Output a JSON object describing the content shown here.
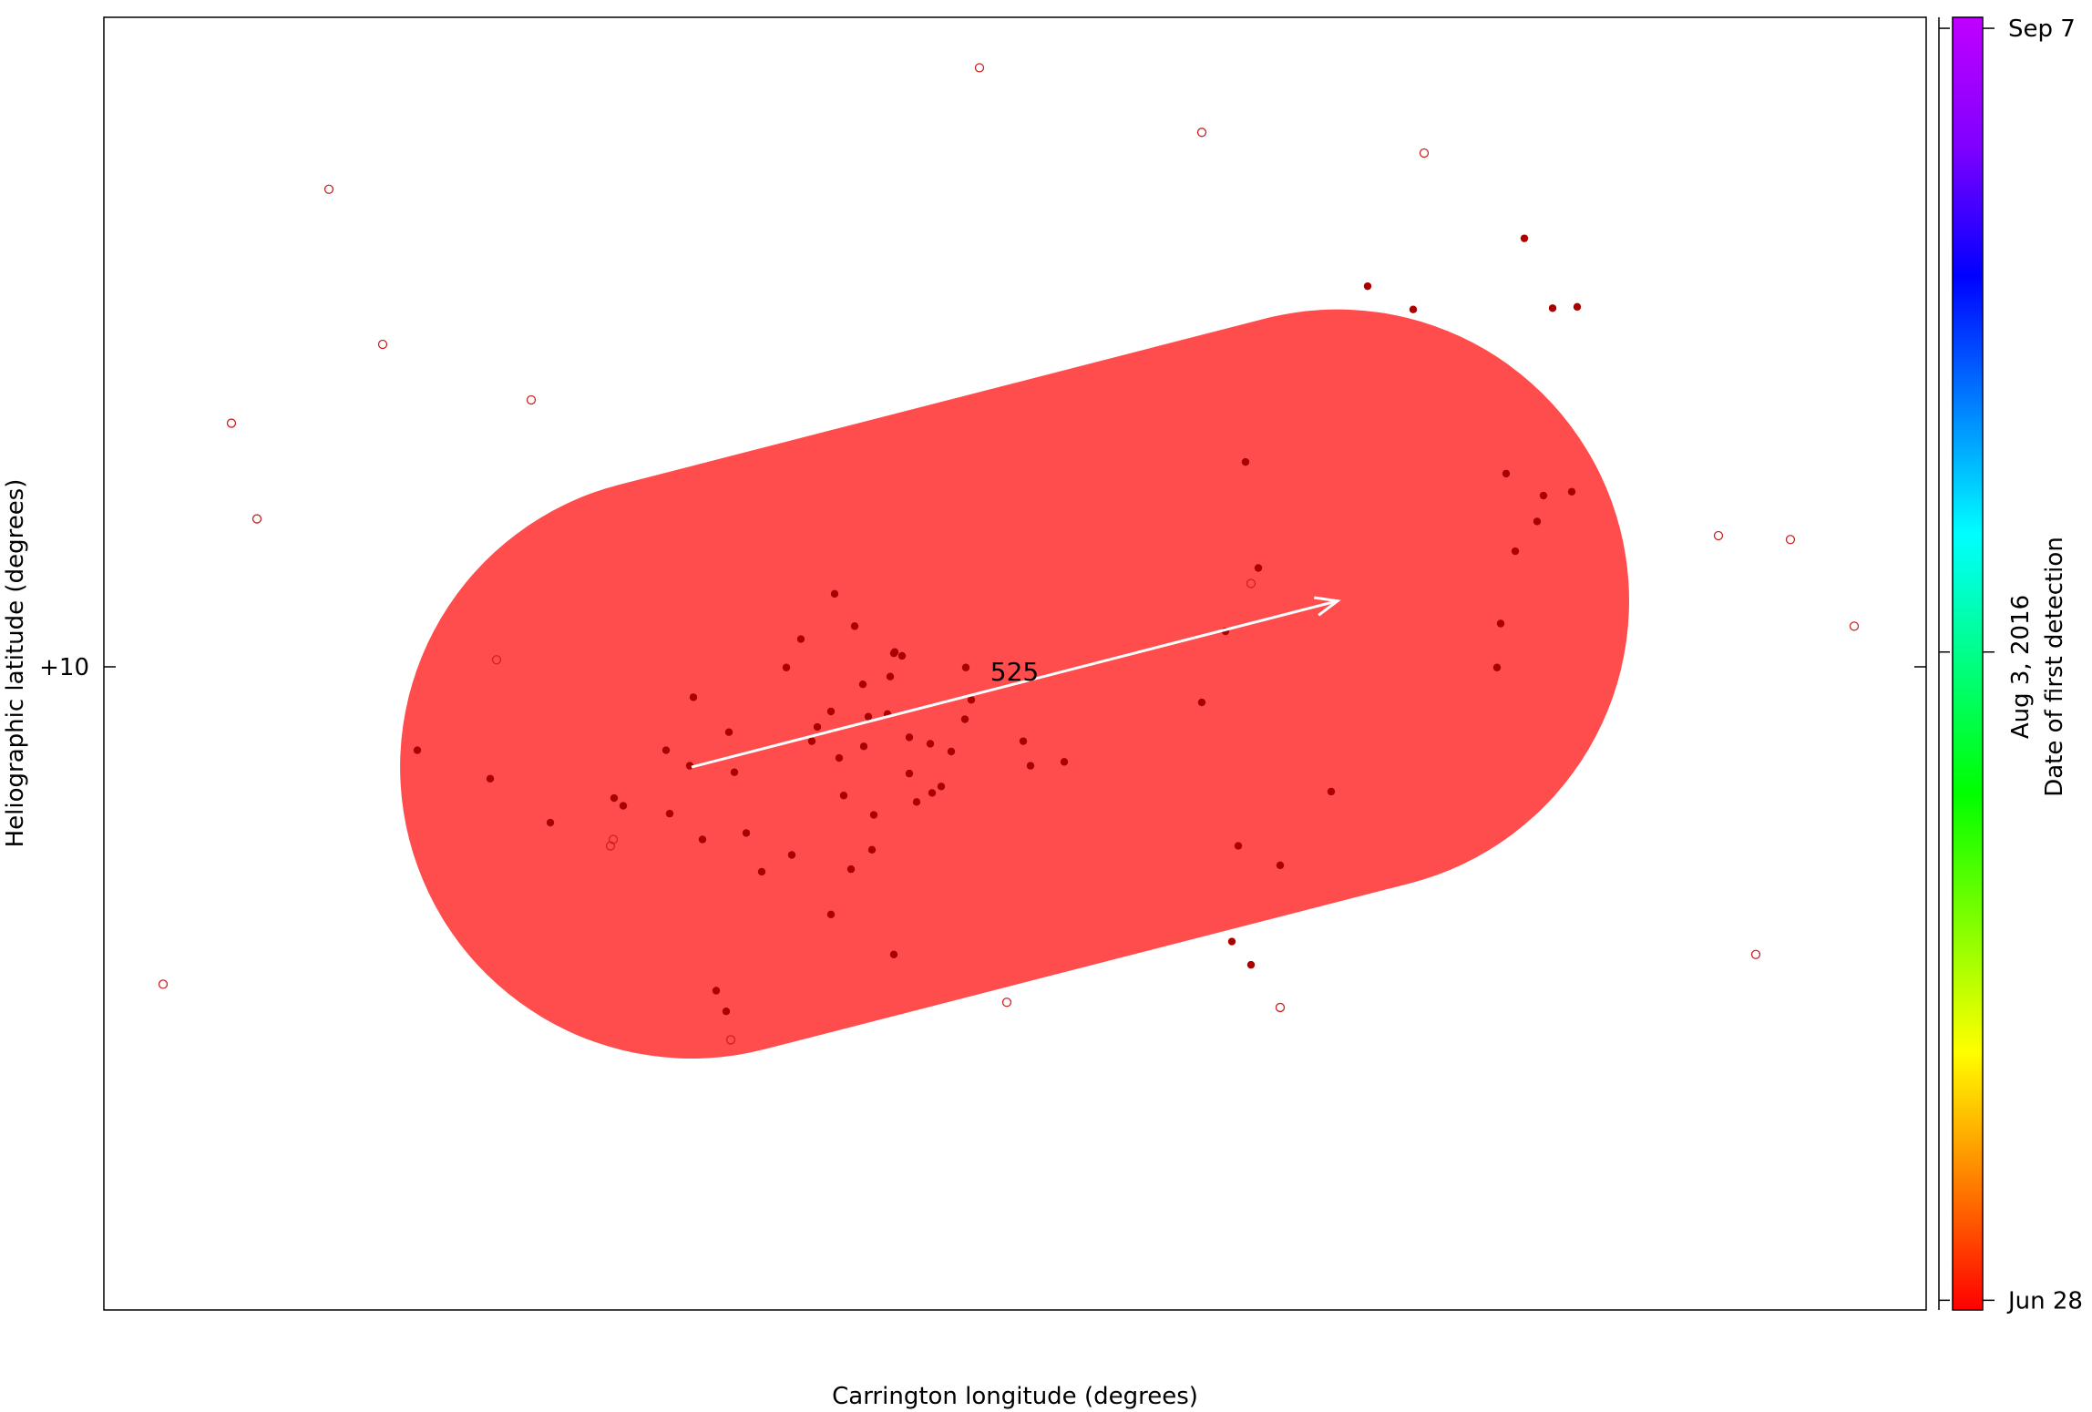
{
  "chart_data": {
    "type": "scatter",
    "title": "",
    "xlabel": "Carrington longitude (degrees)",
    "ylabel": "Heliographic latitude (degrees)",
    "y_ticks": [
      "+10"
    ],
    "grid": false,
    "colors": {
      "region_fill": "#ff4d4d",
      "point": "#aa0000",
      "arrow": "#ffffff"
    },
    "region": {
      "label": "525",
      "shape": "stadium",
      "axis_start": {
        "lon": 0.3225,
        "lat": 0.42
      },
      "axis_end": {
        "lon": 0.677,
        "lat": 0.5485
      },
      "radius_lon_units": 0.16,
      "arrow": true
    },
    "points_filled": [
      [
        0.172,
        0.433
      ],
      [
        0.212,
        0.411
      ],
      [
        0.245,
        0.377
      ],
      [
        0.28,
        0.396
      ],
      [
        0.285,
        0.39
      ],
      [
        0.3085,
        0.433
      ],
      [
        0.3105,
        0.384
      ],
      [
        0.3215,
        0.421
      ],
      [
        0.3235,
        0.474
      ],
      [
        0.3285,
        0.364
      ],
      [
        0.336,
        0.247
      ],
      [
        0.343,
        0.447
      ],
      [
        0.346,
        0.416
      ],
      [
        0.3415,
        0.231
      ],
      [
        0.3525,
        0.369
      ],
      [
        0.361,
        0.339
      ],
      [
        0.3745,
        0.497
      ],
      [
        0.3775,
        0.352
      ],
      [
        0.3825,
        0.519
      ],
      [
        0.3885,
        0.44
      ],
      [
        0.3915,
        0.451
      ],
      [
        0.399,
        0.306
      ],
      [
        0.401,
        0.554
      ],
      [
        0.399,
        0.463
      ],
      [
        0.4035,
        0.427
      ],
      [
        0.406,
        0.398
      ],
      [
        0.41,
        0.341
      ],
      [
        0.412,
        0.529
      ],
      [
        0.417,
        0.436
      ],
      [
        0.4195,
        0.459
      ],
      [
        0.4225,
        0.383
      ],
      [
        0.4335,
        0.508
      ],
      [
        0.434,
        0.509
      ],
      [
        0.442,
        0.443
      ],
      [
        0.4335,
        0.275
      ],
      [
        0.438,
        0.506
      ],
      [
        0.442,
        0.415
      ],
      [
        0.4535,
        0.438
      ],
      [
        0.4545,
        0.4
      ],
      [
        0.465,
        0.432
      ],
      [
        0.446,
        0.393
      ],
      [
        0.4215,
        0.356
      ],
      [
        0.4165,
        0.484
      ],
      [
        0.43,
        0.461
      ],
      [
        0.4315,
        0.49
      ],
      [
        0.4595,
        0.405
      ],
      [
        0.4725,
        0.457
      ],
      [
        0.473,
        0.497
      ],
      [
        0.476,
        0.472
      ],
      [
        0.5045,
        0.44
      ],
      [
        0.5085,
        0.421
      ],
      [
        0.527,
        0.424
      ],
      [
        0.6025,
        0.47
      ],
      [
        0.6155,
        0.525
      ],
      [
        0.6225,
        0.359
      ],
      [
        0.6265,
        0.656
      ],
      [
        0.619,
        0.285
      ],
      [
        0.6295,
        0.267
      ],
      [
        0.6335,
        0.574
      ],
      [
        0.6455,
        0.344
      ],
      [
        0.6735,
        0.401
      ],
      [
        0.6935,
        0.792
      ],
      [
        0.7185,
        0.774
      ],
      [
        0.7695,
        0.647
      ],
      [
        0.7795,
        0.829
      ],
      [
        0.795,
        0.775
      ],
      [
        0.79,
        0.63
      ],
      [
        0.7665,
        0.531
      ],
      [
        0.7645,
        0.497
      ],
      [
        0.7745,
        0.587
      ],
      [
        0.7865,
        0.61
      ],
      [
        0.8055,
        0.633
      ],
      [
        0.8085,
        0.776
      ]
    ],
    "points_open": [
      [
        0.0325,
        0.252
      ],
      [
        0.07,
        0.686
      ],
      [
        0.084,
        0.612
      ],
      [
        0.1235,
        0.867
      ],
      [
        0.153,
        0.747
      ],
      [
        0.2345,
        0.704
      ],
      [
        0.2155,
        0.503
      ],
      [
        0.278,
        0.359
      ],
      [
        0.2795,
        0.364
      ],
      [
        0.344,
        0.209
      ],
      [
        0.4805,
        0.961
      ],
      [
        0.4955,
        0.238
      ],
      [
        0.6025,
        0.911
      ],
      [
        0.6295,
        0.562
      ],
      [
        0.6455,
        0.234
      ],
      [
        0.7245,
        0.895
      ],
      [
        0.886,
        0.599
      ],
      [
        0.9065,
        0.275
      ],
      [
        0.9255,
        0.596
      ],
      [
        0.9605,
        0.529
      ]
    ]
  },
  "colorbar": {
    "label_line1": "Aug 3, 2016",
    "label_line2": "Date of first detection",
    "ticks": [
      {
        "label": "Sep 7",
        "frac": 0.9915
      },
      {
        "label": "Aug 3, 2016",
        "frac": 0.509
      },
      {
        "label": "Jun 28",
        "frac": 0.0075
      }
    ],
    "stops": [
      "#ff0000",
      "#ff8000",
      "#ffff00",
      "#80ff00",
      "#00ff00",
      "#00ff80",
      "#00ffff",
      "#0080ff",
      "#0000ff",
      "#8000ff",
      "#c000ff"
    ]
  }
}
